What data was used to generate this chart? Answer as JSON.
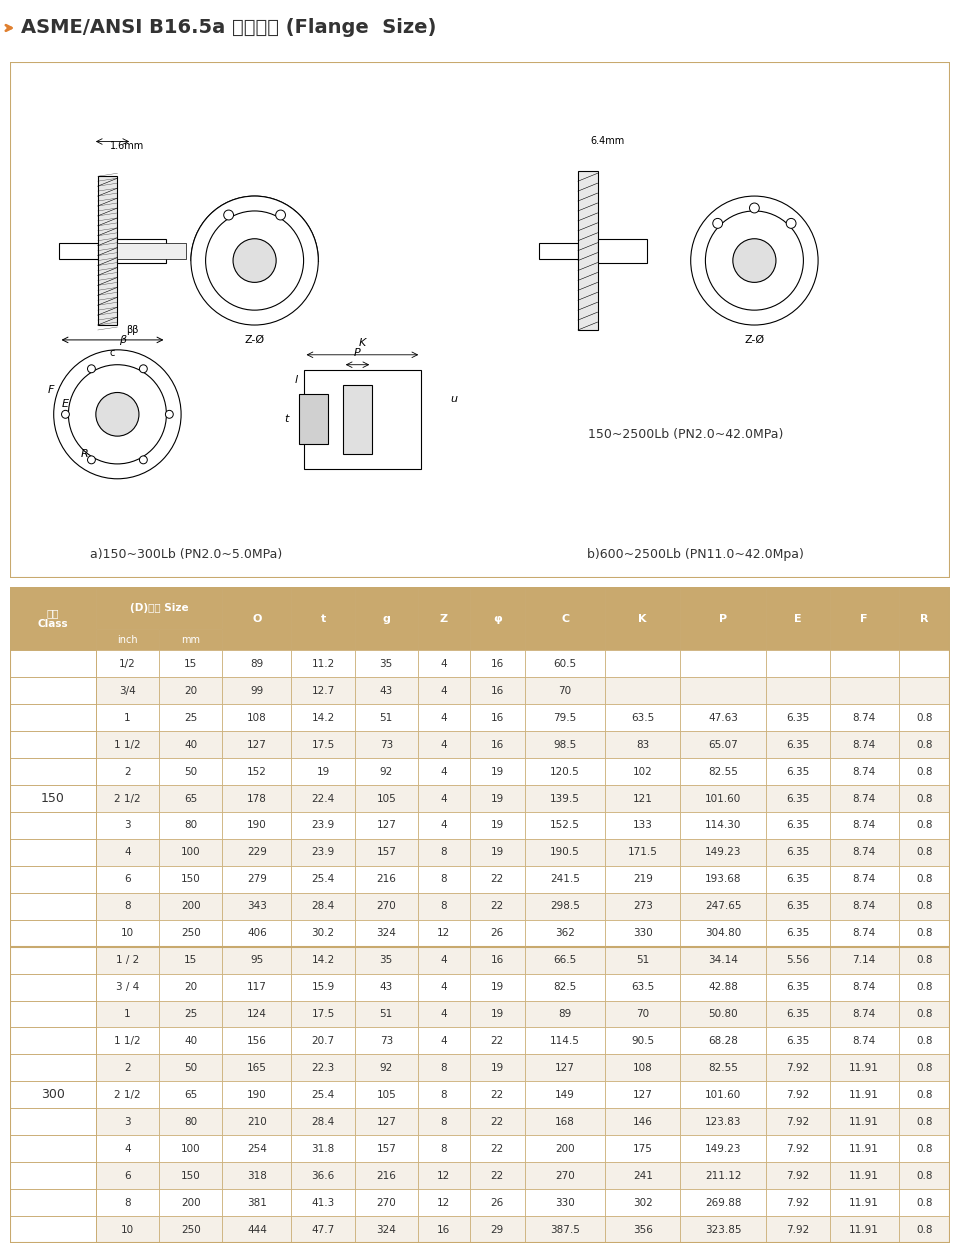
{
  "title": "ASME/ANSI B16.5a 法兰尺寸 (Flange  Size)",
  "diagram_label_a": "a)150~300Lb (PN2.0~5.0MPa)",
  "diagram_label_b": "b)600~2500Lb (PN11.0~42.0Mpa)",
  "diagram_label_c": "150~2500Lb (PN2.0~42.0MPa)",
  "header_row1": [
    "磅级",
    "(D)通径 Size",
    "",
    "O",
    "t",
    "g",
    "Z",
    "φ",
    "C",
    "K",
    "P",
    "E",
    "F",
    "R"
  ],
  "header_row2": [
    "Class",
    "inch",
    "mm",
    "",
    "",
    "",
    "",
    "",
    "",
    "",
    "",
    "",
    "",
    ""
  ],
  "col_headers": [
    "O",
    "t",
    "g",
    "Z",
    "φ",
    "C",
    "K",
    "P",
    "E",
    "F",
    "R"
  ],
  "table_bg_header": "#c8a96e",
  "table_bg_odd": "#ffffff",
  "table_bg_even": "#f5f0e8",
  "table_border": "#c8a96e",
  "class_150_rows": [
    [
      "1/2",
      "15",
      "89",
      "11.2",
      "35",
      "4",
      "16",
      "60.5",
      "",
      "",
      "",
      "",
      ""
    ],
    [
      "3/4",
      "20",
      "99",
      "12.7",
      "43",
      "4",
      "16",
      "70",
      "",
      "",
      "",
      "",
      ""
    ],
    [
      "1",
      "25",
      "108",
      "14.2",
      "51",
      "4",
      "16",
      "79.5",
      "63.5",
      "47.63",
      "6.35",
      "8.74",
      "0.8"
    ],
    [
      "1 1/2",
      "40",
      "127",
      "17.5",
      "73",
      "4",
      "16",
      "98.5",
      "83",
      "65.07",
      "6.35",
      "8.74",
      "0.8"
    ],
    [
      "2",
      "50",
      "152",
      "19",
      "92",
      "4",
      "19",
      "120.5",
      "102",
      "82.55",
      "6.35",
      "8.74",
      "0.8"
    ],
    [
      "2 1/2",
      "65",
      "178",
      "22.4",
      "105",
      "4",
      "19",
      "139.5",
      "121",
      "101.60",
      "6.35",
      "8.74",
      "0.8"
    ],
    [
      "3",
      "80",
      "190",
      "23.9",
      "127",
      "4",
      "19",
      "152.5",
      "133",
      "114.30",
      "6.35",
      "8.74",
      "0.8"
    ],
    [
      "4",
      "100",
      "229",
      "23.9",
      "157",
      "8",
      "19",
      "190.5",
      "171.5",
      "149.23",
      "6.35",
      "8.74",
      "0.8"
    ],
    [
      "6",
      "150",
      "279",
      "25.4",
      "216",
      "8",
      "22",
      "241.5",
      "219",
      "193.68",
      "6.35",
      "8.74",
      "0.8"
    ],
    [
      "8",
      "200",
      "343",
      "28.4",
      "270",
      "8",
      "22",
      "298.5",
      "273",
      "247.65",
      "6.35",
      "8.74",
      "0.8"
    ],
    [
      "10",
      "250",
      "406",
      "30.2",
      "324",
      "12",
      "26",
      "362",
      "330",
      "304.80",
      "6.35",
      "8.74",
      "0.8"
    ]
  ],
  "class_300_rows": [
    [
      "1 / 2",
      "15",
      "95",
      "14.2",
      "35",
      "4",
      "16",
      "66.5",
      "51",
      "34.14",
      "5.56",
      "7.14",
      "0.8"
    ],
    [
      "3 / 4",
      "20",
      "117",
      "15.9",
      "43",
      "4",
      "19",
      "82.5",
      "63.5",
      "42.88",
      "6.35",
      "8.74",
      "0.8"
    ],
    [
      "1",
      "25",
      "124",
      "17.5",
      "51",
      "4",
      "19",
      "89",
      "70",
      "50.80",
      "6.35",
      "8.74",
      "0.8"
    ],
    [
      "1 1/2",
      "40",
      "156",
      "20.7",
      "73",
      "4",
      "22",
      "114.5",
      "90.5",
      "68.28",
      "6.35",
      "8.74",
      "0.8"
    ],
    [
      "2",
      "50",
      "165",
      "22.3",
      "92",
      "8",
      "19",
      "127",
      "108",
      "82.55",
      "7.92",
      "11.91",
      "0.8"
    ],
    [
      "2 1/2",
      "65",
      "190",
      "25.4",
      "105",
      "8",
      "22",
      "149",
      "127",
      "101.60",
      "7.92",
      "11.91",
      "0.8"
    ],
    [
      "3",
      "80",
      "210",
      "28.4",
      "127",
      "8",
      "22",
      "168",
      "146",
      "123.83",
      "7.92",
      "11.91",
      "0.8"
    ],
    [
      "4",
      "100",
      "254",
      "31.8",
      "157",
      "8",
      "22",
      "200",
      "175",
      "149.23",
      "7.92",
      "11.91",
      "0.8"
    ],
    [
      "6",
      "150",
      "318",
      "36.6",
      "216",
      "12",
      "22",
      "270",
      "241",
      "211.12",
      "7.92",
      "11.91",
      "0.8"
    ],
    [
      "8",
      "200",
      "381",
      "41.3",
      "270",
      "12",
      "26",
      "330",
      "302",
      "269.88",
      "7.92",
      "11.91",
      "0.8"
    ],
    [
      "10",
      "250",
      "444",
      "47.7",
      "324",
      "16",
      "29",
      "387.5",
      "356",
      "323.85",
      "7.92",
      "11.91",
      "0.8"
    ]
  ],
  "bg_color": "#ffffff",
  "title_color": "#333333",
  "title_arrow_color": "#e08030",
  "header_text_color": "#333333",
  "row_text_color": "#333333",
  "class_label_color": "#333333"
}
